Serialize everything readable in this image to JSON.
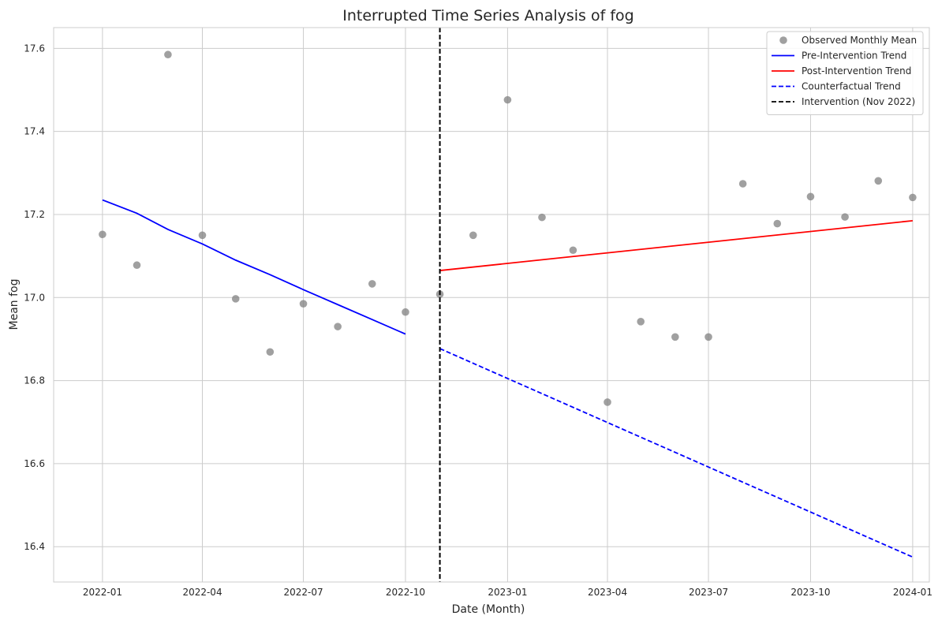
{
  "chart_data": {
    "type": "line",
    "title": "Interrupted Time Series Analysis of fog",
    "xlabel": "Date (Month)",
    "ylabel": "Mean fog",
    "xlim": [
      "2021-11-18",
      "2024-01-16"
    ],
    "ylim": [
      16.315,
      17.65
    ],
    "x_ticks": [
      "2022-01",
      "2022-04",
      "2022-07",
      "2022-10",
      "2023-01",
      "2023-04",
      "2023-07",
      "2023-10",
      "2024-01"
    ],
    "y_ticks": [
      "16.4",
      "16.6",
      "16.8",
      "17.0",
      "17.2",
      "17.4",
      "17.6"
    ],
    "grid": true,
    "legend_position": "top-right",
    "observed": {
      "name": "Observed Monthly Mean",
      "color": "#808080",
      "x": [
        "2022-01",
        "2022-02",
        "2022-03",
        "2022-04",
        "2022-05",
        "2022-06",
        "2022-07",
        "2022-08",
        "2022-09",
        "2022-10",
        "2022-11",
        "2022-12",
        "2023-01",
        "2023-02",
        "2023-03",
        "2023-04",
        "2023-05",
        "2023-06",
        "2023-07",
        "2023-08",
        "2023-09",
        "2023-10",
        "2023-11",
        "2023-12",
        "2024-01"
      ],
      "y": [
        17.152,
        17.078,
        17.585,
        17.15,
        16.997,
        16.869,
        16.985,
        16.93,
        17.033,
        16.965,
        17.008,
        17.15,
        17.476,
        17.193,
        17.114,
        16.748,
        16.942,
        16.905,
        16.905,
        17.274,
        17.178,
        17.243,
        17.194,
        17.281,
        17.241
      ]
    },
    "series": [
      {
        "name": "Pre-Intervention Trend",
        "color": "#0000ff",
        "style": "solid",
        "x": [
          "2022-01",
          "2022-02",
          "2022-03",
          "2022-04",
          "2022-05",
          "2022-06",
          "2022-07",
          "2022-08",
          "2022-09",
          "2022-10"
        ],
        "y": [
          17.235,
          17.203,
          17.164,
          17.129,
          17.09,
          17.055,
          17.019,
          16.983,
          16.947,
          16.912
        ]
      },
      {
        "name": "Post-Intervention Trend",
        "color": "#ff0000",
        "style": "solid",
        "x": [
          "2022-11",
          "2024-01"
        ],
        "y": [
          17.065,
          17.185
        ]
      },
      {
        "name": "Counterfactual Trend",
        "color": "#0000ff",
        "style": "dashed",
        "x": [
          "2022-11",
          "2024-01"
        ],
        "y": [
          16.877,
          16.375
        ]
      }
    ],
    "intervention": {
      "name": "Intervention (Nov 2022)",
      "x": "2022-11",
      "color": "#000000",
      "style": "dashed"
    }
  }
}
